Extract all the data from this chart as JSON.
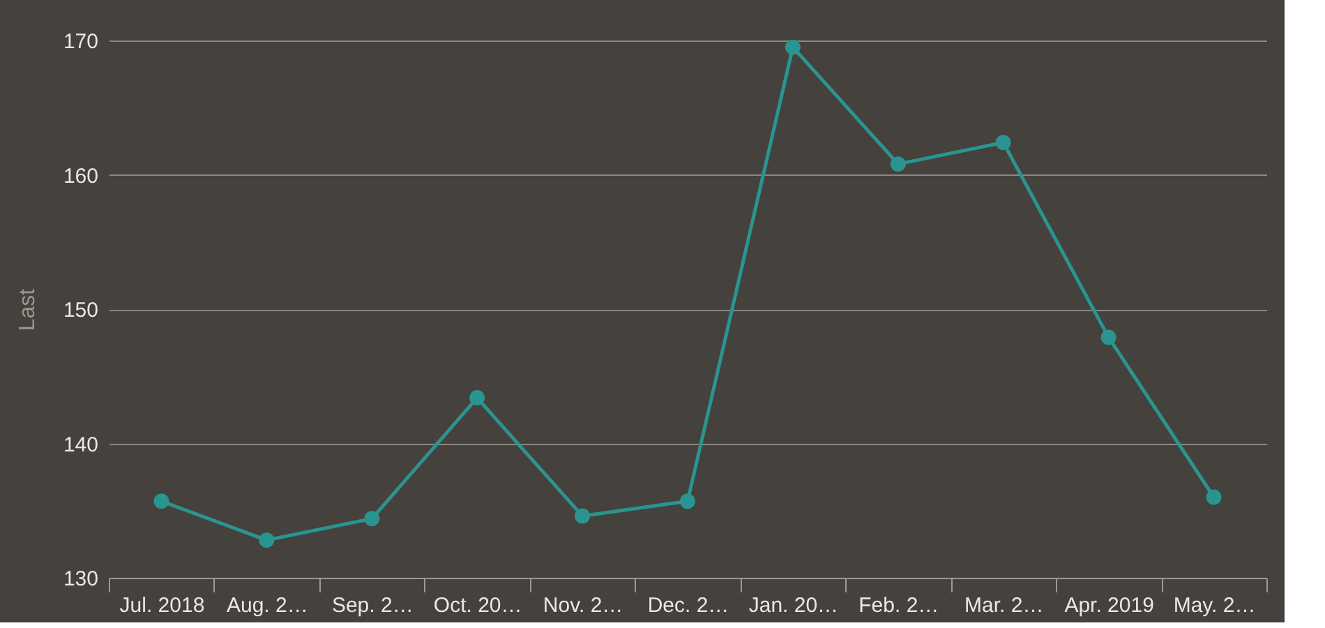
{
  "chart_data": {
    "type": "line",
    "ylabel": "Last",
    "categories": [
      "Jul. 2018",
      "Aug. 2…",
      "Sep. 2…",
      "Oct. 20…",
      "Nov. 2…",
      "Dec. 2…",
      "Jan. 20…",
      "Feb. 2…",
      "Mar. 2…",
      "Apr. 2019",
      "May. 2…"
    ],
    "values": [
      135.7,
      132.8,
      134.4,
      143.4,
      134.6,
      135.7,
      169.5,
      160.8,
      162.4,
      147.9,
      136.0
    ],
    "color": "#2a9590",
    "ylim": [
      130,
      170
    ],
    "yticks": [
      130,
      140,
      150,
      160,
      170
    ],
    "grid": "y",
    "marker": "circle",
    "line_style": "solid"
  }
}
